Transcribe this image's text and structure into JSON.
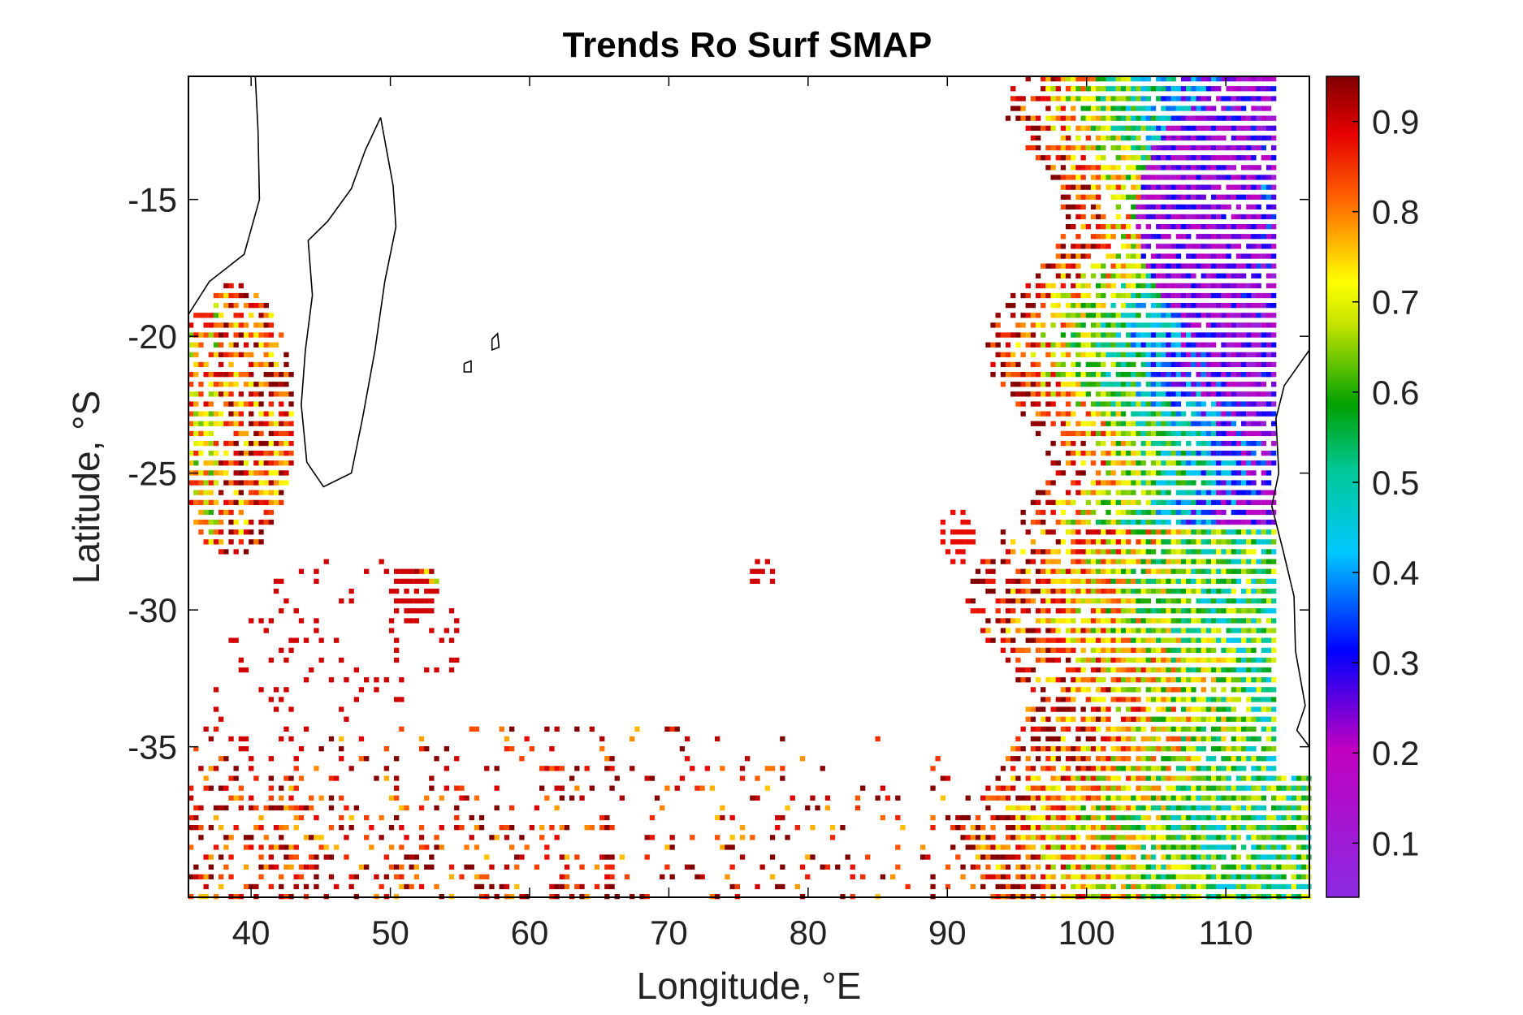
{
  "chart_data": {
    "type": "heatmap",
    "title": "Trends Ro Surf SMAP",
    "xlabel": "Longitude, °E",
    "ylabel": "Latitude, °S",
    "xlim": [
      35.5,
      116
    ],
    "ylim": [
      -40.5,
      -10.5
    ],
    "xticks": [
      40,
      50,
      60,
      70,
      80,
      90,
      100,
      110
    ],
    "xtick_labels": [
      "40",
      "50",
      "60",
      "70",
      "80",
      "90",
      "100",
      "110"
    ],
    "yticks": [
      -15,
      -20,
      -25,
      -30,
      -35
    ],
    "ytick_labels": [
      "-15",
      "-20",
      "-25",
      "-30",
      "-35"
    ],
    "colorbar": {
      "colormap": "jet",
      "limits": [
        0.04,
        0.95
      ],
      "ticks": [
        0.1,
        0.2,
        0.3,
        0.4,
        0.5,
        0.6,
        0.7,
        0.8,
        0.9
      ],
      "tick_labels": [
        "0.1",
        "0.2",
        "0.3",
        "0.4",
        "0.5",
        "0.6",
        "0.7",
        "0.8",
        "0.9"
      ]
    },
    "grid": false,
    "regions": [
      {
        "lon": [
          98,
          116
        ],
        "lat": [
          -26,
          -10.5
        ],
        "typical_value": 0.35
      },
      {
        "lon": [
          104,
          112
        ],
        "lat": [
          -19,
          -12
        ],
        "typical_value": 0.15
      },
      {
        "lon": [
          94,
          116
        ],
        "lat": [
          -40.5,
          -26
        ],
        "typical_value": 0.8
      },
      {
        "lon": [
          35.5,
          43
        ],
        "lat": [
          -27,
          -18.5
        ],
        "typical_value": 0.8
      },
      {
        "lon": [
          35.5,
          66
        ],
        "lat": [
          -40.5,
          -34
        ],
        "typical_value": 0.85
      }
    ]
  }
}
